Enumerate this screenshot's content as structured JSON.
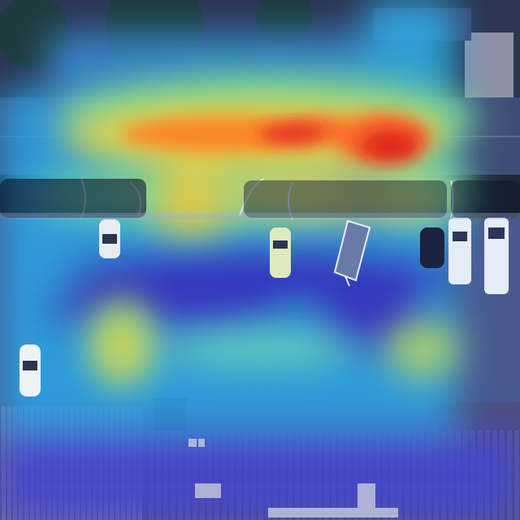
{
  "image": {
    "kind": "aerial photograph with attention heatmap overlay",
    "colormap": [
      "#00007f",
      "#0000ff",
      "#00b4ff",
      "#00ffb4",
      "#b4ff00",
      "#ffd000",
      "#ff4000",
      "#c80000"
    ],
    "scene_elements": [
      "trees",
      "building-roof-top",
      "street",
      "parked-cars-street",
      "parking-lot",
      "parked-car-white",
      "pickup-truck",
      "trailer",
      "dark-car",
      "white-trucks",
      "sidewalk",
      "corrugated-roof-building",
      "rooftop-units"
    ]
  }
}
